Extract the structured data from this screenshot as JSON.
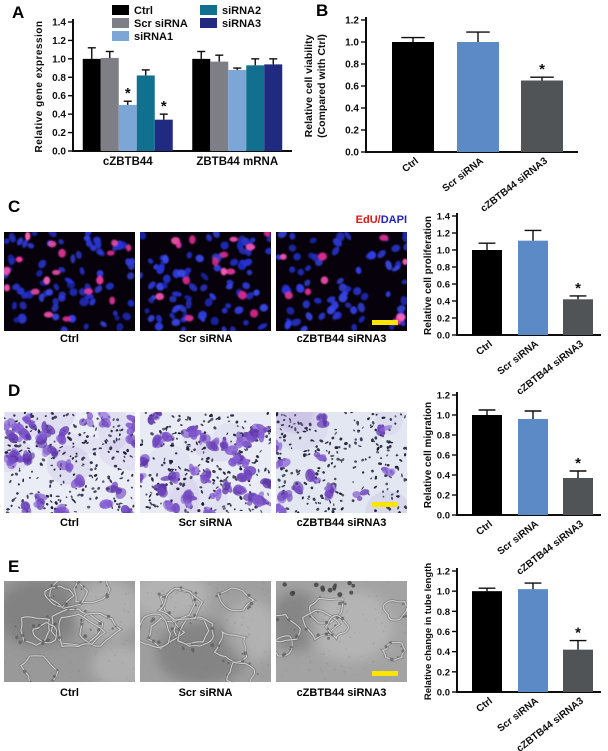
{
  "panels": {
    "A": {
      "letter": "A"
    },
    "B": {
      "letter": "B"
    },
    "C": {
      "letter": "C",
      "stain_label": {
        "edu": "EdU",
        "separator": "/",
        "dapi": "DAPI"
      },
      "image_labels": [
        "Ctrl",
        "Scr siRNA",
        "cZBTB44 siRNA3"
      ],
      "scale_bar_on_last_image": true
    },
    "D": {
      "letter": "D",
      "image_labels": [
        "Ctrl",
        "Scr siRNA",
        "cZBTB44 siRNA3"
      ],
      "scale_bar_on_last_image": true
    },
    "E": {
      "letter": "E",
      "image_labels": [
        "Ctrl",
        "Scr siRNA",
        "cZBTB44 siRNA3"
      ],
      "scale_bar_on_last_image": true
    }
  },
  "colors": {
    "edu_label": "#e41414",
    "dapi_label": "#2222cc",
    "scale_bar": "#ffe400",
    "axis": "#0d0d0d",
    "ctrl_bar": "#000000",
    "scr_sirna_bar": "#5b8ac6",
    "czbtb44_sirna3_bar": "#515457"
  },
  "chart_data": [
    {
      "panel": "A",
      "type": "bar",
      "grouped": true,
      "ylabel": "Relative gene expression",
      "ylim": [
        0,
        1.4
      ],
      "ytick_step": 0.2,
      "legend_position": "top",
      "categories": [
        "cZBTB44",
        "ZBTB44 mRNA"
      ],
      "series": [
        {
          "name": "Ctrl",
          "color": "#000000",
          "values": [
            1.0,
            1.0
          ],
          "errors": [
            0.12,
            0.08
          ],
          "sig": [
            "",
            ""
          ]
        },
        {
          "name": "Scr siRNA",
          "color": "#7e7e86",
          "values": [
            1.01,
            0.97
          ],
          "errors": [
            0.07,
            0.07
          ],
          "sig": [
            "",
            ""
          ]
        },
        {
          "name": "siRNA1",
          "color": "#7ba6d6",
          "values": [
            0.5,
            0.88
          ],
          "errors": [
            0.04,
            0.02
          ],
          "sig": [
            "*",
            ""
          ]
        },
        {
          "name": "siRNA2",
          "color": "#11708f",
          "values": [
            0.82,
            0.93
          ],
          "errors": [
            0.06,
            0.07
          ],
          "sig": [
            "",
            ""
          ]
        },
        {
          "name": "siRNA3",
          "color": "#202a80",
          "values": [
            0.34,
            0.94
          ],
          "errors": [
            0.06,
            0.06
          ],
          "sig": [
            "*",
            ""
          ]
        }
      ]
    },
    {
      "panel": "B",
      "type": "bar",
      "ylabel_lines": [
        "Relative cell viability",
        "(Compared with Ctrl)"
      ],
      "ylim": [
        0,
        1.2
      ],
      "ytick_step": 0.2,
      "categories": [
        "Ctrl",
        "Scr siRNA",
        "cZBTB44 siRNA3"
      ],
      "values": [
        1.0,
        1.0,
        0.65
      ],
      "errors": [
        0.04,
        0.09,
        0.03
      ],
      "sig": [
        "",
        "",
        "*"
      ],
      "colors": [
        "#000000",
        "#5b8ac6",
        "#515457"
      ]
    },
    {
      "panel": "C",
      "type": "bar",
      "ylabel_lines": [
        "Relative cell proliferation"
      ],
      "ylim": [
        0,
        1.4
      ],
      "ytick_step": 0.2,
      "categories": [
        "Ctrl",
        "Scr siRNA",
        "cZBTB44 siRNA3"
      ],
      "values": [
        1.0,
        1.11,
        0.42
      ],
      "errors": [
        0.08,
        0.12,
        0.04
      ],
      "sig": [
        "",
        "",
        "*"
      ],
      "colors": [
        "#000000",
        "#5b8ac6",
        "#515457"
      ]
    },
    {
      "panel": "D",
      "type": "bar",
      "ylabel_lines": [
        "Relative cell migration"
      ],
      "ylim": [
        0,
        1.2
      ],
      "ytick_step": 0.2,
      "categories": [
        "Ctrl",
        "Scr siRNA",
        "cZBTB44 siRNA3"
      ],
      "values": [
        1.0,
        0.96,
        0.37
      ],
      "errors": [
        0.05,
        0.08,
        0.07
      ],
      "sig": [
        "",
        "",
        "*"
      ],
      "colors": [
        "#000000",
        "#5b8ac6",
        "#515457"
      ]
    },
    {
      "panel": "E",
      "type": "bar",
      "ylabel_lines": [
        "Relative change in tube length"
      ],
      "ylim": [
        0,
        1.2
      ],
      "ytick_step": 0.2,
      "categories": [
        "Ctrl",
        "Scr siRNA",
        "cZBTB44 siRNA3"
      ],
      "values": [
        1.0,
        1.02,
        0.42
      ],
      "errors": [
        0.03,
        0.06,
        0.09
      ],
      "sig": [
        "",
        "",
        "*"
      ],
      "colors": [
        "#000000",
        "#5b8ac6",
        "#515457"
      ]
    }
  ]
}
